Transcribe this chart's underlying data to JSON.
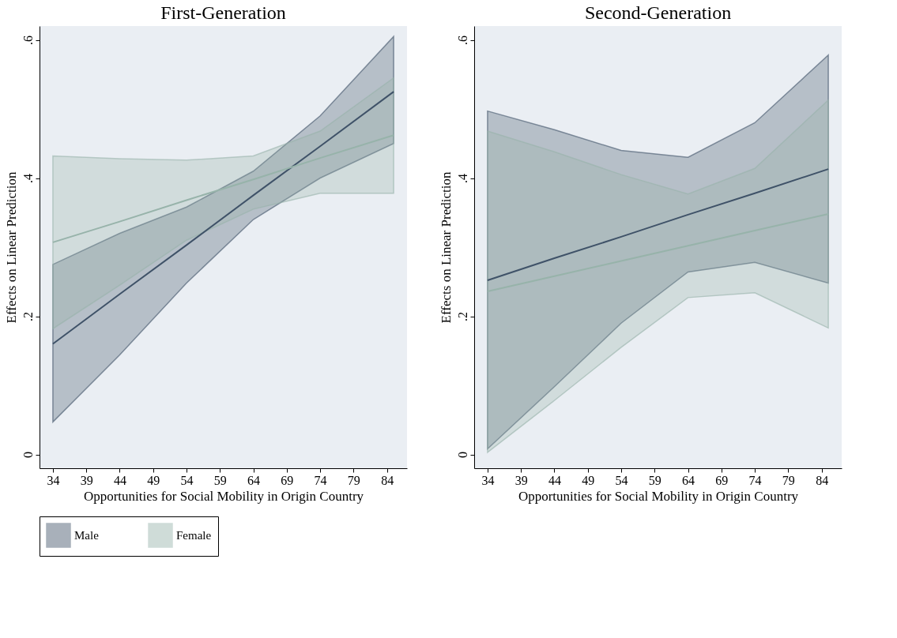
{
  "chart_data": [
    {
      "type": "line",
      "title": "First-Generation",
      "xlabel": "Opportunities for Social Mobility in Origin Country",
      "ylabel": "Effects on Linear Prediction",
      "x": [
        34,
        44,
        54,
        64,
        74,
        85
      ],
      "xlim": [
        32,
        87
      ],
      "xticks": [
        34,
        39,
        44,
        49,
        54,
        59,
        64,
        69,
        74,
        79,
        84
      ],
      "ylim": [
        -0.02,
        0.62
      ],
      "yticks": [
        0,
        {
          "value": 0.2,
          "label": ".2"
        },
        {
          "value": 0.4,
          "label": ".4"
        },
        {
          "value": 0.6,
          "label": ".6"
        }
      ],
      "legend": "bottom",
      "series": [
        {
          "name": "Male",
          "color": "#3f5268",
          "values": [
            0.16,
            0.232,
            0.303,
            0.375,
            0.446,
            0.525
          ],
          "lower": [
            0.047,
            0.144,
            0.248,
            0.34,
            0.4,
            0.45
          ],
          "upper": [
            0.275,
            0.32,
            0.358,
            0.41,
            0.49,
            0.605
          ]
        },
        {
          "name": "Female",
          "color": "#97b3aa",
          "values": [
            0.307,
            0.337,
            0.368,
            0.398,
            0.429,
            0.462
          ],
          "lower": [
            0.182,
            0.245,
            0.31,
            0.355,
            0.378,
            0.378
          ],
          "upper": [
            0.432,
            0.428,
            0.426,
            0.432,
            0.468,
            0.545
          ]
        }
      ]
    },
    {
      "type": "line",
      "title": "Second-Generation",
      "xlabel": "Opportunities for Social Mobility in Origin Country",
      "ylabel": "Effects on Linear Prediction",
      "x": [
        34,
        44,
        54,
        64,
        74,
        85
      ],
      "xlim": [
        32,
        87
      ],
      "xticks": [
        34,
        39,
        44,
        49,
        54,
        59,
        64,
        69,
        74,
        79,
        84
      ],
      "ylim": [
        -0.02,
        0.62
      ],
      "yticks": [
        0,
        {
          "value": 0.2,
          "label": ".2"
        },
        {
          "value": 0.4,
          "label": ".4"
        },
        {
          "value": 0.6,
          "label": ".6"
        }
      ],
      "legend": "bottom",
      "series": [
        {
          "name": "Male",
          "color": "#3f5268",
          "values": [
            0.252,
            0.284,
            0.315,
            0.347,
            0.378,
            0.413
          ],
          "lower": [
            0.008,
            0.098,
            0.19,
            0.264,
            0.278,
            0.248
          ],
          "upper": [
            0.497,
            0.47,
            0.44,
            0.43,
            0.48,
            0.578
          ]
        },
        {
          "name": "Female",
          "color": "#97b3aa",
          "values": [
            0.236,
            0.258,
            0.28,
            0.302,
            0.324,
            0.348
          ],
          "lower": [
            0.003,
            0.078,
            0.155,
            0.227,
            0.234,
            0.183
          ],
          "upper": [
            0.468,
            0.438,
            0.405,
            0.377,
            0.414,
            0.513
          ]
        }
      ]
    }
  ]
}
